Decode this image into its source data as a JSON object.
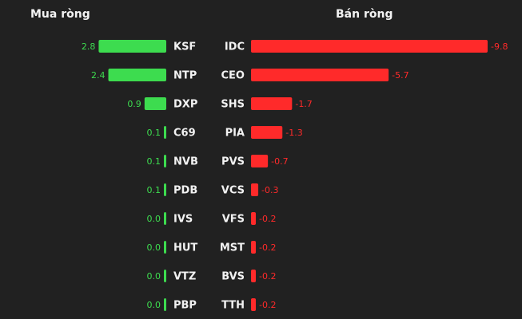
{
  "chart_data": [
    {
      "type": "bar",
      "title": "Mua ròng",
      "categories": [
        "KSF",
        "NTP",
        "DXP",
        "C69",
        "NVB",
        "PDB",
        "IVS",
        "HUT",
        "VTZ",
        "PBP"
      ],
      "values": [
        2.8,
        2.4,
        0.9,
        0.1,
        0.1,
        0.1,
        0.0,
        0.0,
        0.0,
        0.0
      ],
      "value_labels": [
        "2.8",
        "2.4",
        "0.9",
        "0.1",
        "0.1",
        "0.1",
        "0.0",
        "0.0",
        "0.0",
        "0.0"
      ],
      "color": "#3ddc4f"
    },
    {
      "type": "bar",
      "title": "Bán ròng",
      "categories": [
        "IDC",
        "CEO",
        "SHS",
        "PIA",
        "PVS",
        "VCS",
        "VFS",
        "MST",
        "BVS",
        "TTH"
      ],
      "values": [
        -9.8,
        -5.7,
        -1.7,
        -1.3,
        -0.7,
        -0.3,
        -0.2,
        -0.2,
        -0.2,
        -0.2
      ],
      "color": "#ff2a2a"
    }
  ]
}
